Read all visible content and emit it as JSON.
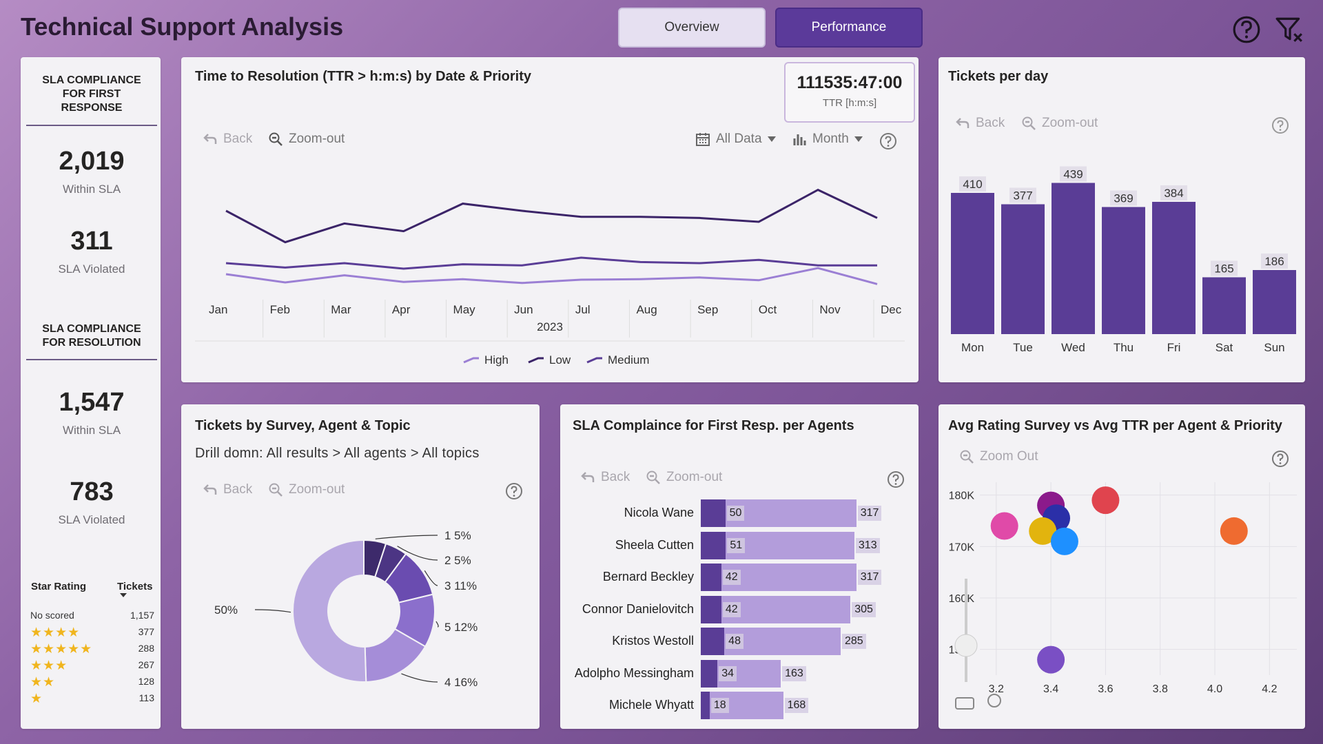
{
  "header": {
    "title": "Technical Support Analysis",
    "tabs": [
      {
        "label": "Overview",
        "active": false
      },
      {
        "label": "Performance",
        "active": true
      }
    ],
    "icons": [
      "help-circle-icon",
      "clear-filter-icon"
    ]
  },
  "kpis": {
    "first_response": {
      "heading_lines": [
        "SLA COMPLIANCE",
        "FOR FIRST",
        "RESPONSE"
      ],
      "within_value": "2,019",
      "within_label": "Within SLA",
      "violated_value": "311",
      "violated_label": "SLA Violated"
    },
    "resolution": {
      "heading_lines": [
        "SLA COMPLIANCE",
        "FOR RESOLUTION"
      ],
      "within_value": "1,547",
      "within_label": "Within SLA",
      "violated_value": "783",
      "violated_label": "SLA Violated"
    }
  },
  "star_rating_table": {
    "col_rating": "Star Rating",
    "col_tickets": "Tickets",
    "rows": [
      {
        "label": "No scored",
        "stars": 0,
        "tickets": "1,157"
      },
      {
        "label": "",
        "stars": 4,
        "tickets": "377"
      },
      {
        "label": "",
        "stars": 5,
        "tickets": "288"
      },
      {
        "label": "",
        "stars": 3,
        "tickets": "267"
      },
      {
        "label": "",
        "stars": 2,
        "tickets": "128"
      },
      {
        "label": "",
        "stars": 1,
        "tickets": "113"
      }
    ],
    "star_color": "#f0b51e"
  },
  "ttr_panel": {
    "title": "Time to Resolution (TTR > h:m:s) by Date & Priority",
    "back_label": "Back",
    "zoom_label": "Zoom-out",
    "all_data_label": "All Data",
    "month_label": "Month",
    "card_value": "111535:47:00",
    "card_label": "TTR [h:m:s]",
    "year_label": "2023"
  },
  "tickets_day_panel": {
    "title": "Tickets per day",
    "back_label": "Back",
    "zoom_label": "Zoom-out"
  },
  "survey_panel": {
    "title": "Tickets by Survey, Agent & Topic",
    "drill_text": "Drill domn: All results > All agents > All topics",
    "back_label": "Back",
    "zoom_label": "Zoom-out"
  },
  "sla_agents_panel": {
    "title": "SLA Complaince for First Resp. per Agents",
    "back_label": "Back",
    "zoom_label": "Zoom-out"
  },
  "scatter_panel": {
    "title": "Avg Rating Survey vs Avg TTR per Agent & Priority",
    "zoom_label": "Zoom Out"
  },
  "chart_data": [
    {
      "id": "ttr_line",
      "type": "line",
      "categories": [
        "Jan",
        "Feb",
        "Mar",
        "Apr",
        "May",
        "Jun",
        "Jul",
        "Aug",
        "Sep",
        "Oct",
        "Nov",
        "Dec"
      ],
      "series": [
        {
          "name": "High",
          "color": "#9b7fd4",
          "values": [
            40,
            25,
            38,
            26,
            31,
            24,
            30,
            31,
            34,
            29,
            51,
            22
          ]
        },
        {
          "name": "Low",
          "color": "#3b2468",
          "values": [
            155,
            98,
            132,
            118,
            168,
            155,
            144,
            144,
            142,
            135,
            193,
            142
          ]
        },
        {
          "name": "Medium",
          "color": "#5a3d96",
          "values": [
            60,
            52,
            60,
            50,
            58,
            56,
            70,
            62,
            60,
            66,
            56,
            56
          ]
        }
      ],
      "xlabel": "2023",
      "legend": "bottom"
    },
    {
      "id": "tickets_per_day",
      "type": "bar",
      "categories": [
        "Mon",
        "Tue",
        "Wed",
        "Thu",
        "Fri",
        "Sat",
        "Sun"
      ],
      "values": [
        410,
        377,
        439,
        369,
        384,
        165,
        186
      ],
      "color": "#5a3d96"
    },
    {
      "id": "survey_donut",
      "type": "pie",
      "slices": [
        {
          "label": "1 5%",
          "value": 5,
          "color": "#3d2a6b"
        },
        {
          "label": "2 5%",
          "value": 5,
          "color": "#4c3584"
        },
        {
          "label": "3 11%",
          "value": 11,
          "color": "#6a4cb0"
        },
        {
          "label": "5 12%",
          "value": 12,
          "color": "#8b6fcc"
        },
        {
          "label": "4 16%",
          "value": 16,
          "color": "#a58dd8"
        },
        {
          "label": "50%",
          "value": 50,
          "color": "#b9a8e0"
        }
      ]
    },
    {
      "id": "sla_agents",
      "type": "bar",
      "orientation": "horizontal",
      "categories": [
        "Nicola Wane",
        "Sheela Cutten",
        "Bernard Beckley",
        "Connor Danielovitch",
        "Kristos Westoll",
        "Adolpho Messingham",
        "Michele Whyatt"
      ],
      "series": [
        {
          "name": "",
          "values": [
            50,
            51,
            42,
            42,
            48,
            34,
            18
          ],
          "color": "#5a3d96"
        },
        {
          "name": "",
          "values": [
            317,
            313,
            317,
            305,
            285,
            163,
            168
          ],
          "color": "#b39ddb"
        }
      ]
    },
    {
      "id": "rating_vs_ttr",
      "type": "scatter",
      "x_ticks": [
        "3.2",
        "3.4",
        "3.6",
        "3.8",
        "4.0",
        "4.2"
      ],
      "y_ticks": [
        "150K",
        "160K",
        "170K",
        "180K"
      ],
      "xlim": [
        3.14,
        4.3
      ],
      "ylim": [
        145000,
        182500
      ],
      "points": [
        {
          "x": 3.4,
          "y": 178000,
          "color": "#8b1a8b"
        },
        {
          "x": 3.6,
          "y": 179000,
          "color": "#e0444e"
        },
        {
          "x": 3.42,
          "y": 175500,
          "color": "#2b2fa8"
        },
        {
          "x": 3.23,
          "y": 174000,
          "color": "#e04aa8"
        },
        {
          "x": 3.37,
          "y": 173000,
          "color": "#e2b40e"
        },
        {
          "x": 3.45,
          "y": 171000,
          "color": "#1e90ff"
        },
        {
          "x": 4.07,
          "y": 173000,
          "color": "#ef6b30"
        },
        {
          "x": 3.4,
          "y": 148000,
          "color": "#7a4fc4"
        }
      ]
    }
  ]
}
